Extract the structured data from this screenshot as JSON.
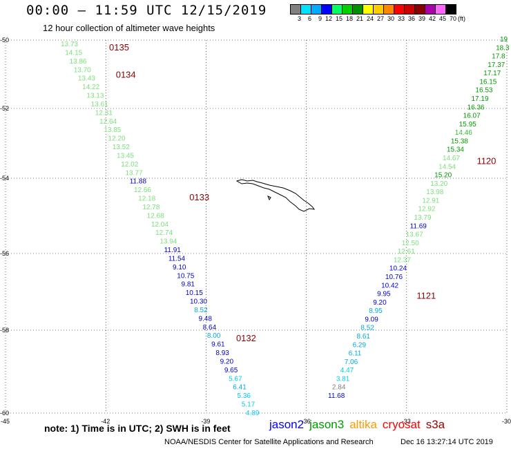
{
  "title": "00:00 – 11:59 UTC 12/15/2019",
  "subtitle": "12 hour collection of altimeter wave heights",
  "colorbar": {
    "labels": [
      "3",
      "6",
      "9",
      "12",
      "15",
      "18",
      "21",
      "24",
      "27",
      "30",
      "33",
      "36",
      "39",
      "42",
      "45",
      "70"
    ],
    "unit": "(ft)",
    "colors": [
      "#808080",
      "#00e0ff",
      "#00aaff",
      "#0000ff",
      "#00ff60",
      "#00d000",
      "#009000",
      "#ffff00",
      "#ffcc00",
      "#ff8800",
      "#ff0000",
      "#cc0000",
      "#880000",
      "#aa00aa",
      "#ff66ff",
      "#000000"
    ]
  },
  "axes": {
    "lat_labels": [
      "-50",
      "-52",
      "-54",
      "-56",
      "-58",
      "-60"
    ],
    "lon_labels": [
      "-45",
      "-42",
      "-39",
      "-36",
      "-33",
      "-30"
    ]
  },
  "passes": [
    {
      "label": "0135",
      "lon": -41.9,
      "lat": -50.1
    },
    {
      "label": "0134",
      "lon": -41.7,
      "lat": -50.9
    },
    {
      "label": "0133",
      "lon": -39.5,
      "lat": -54.4
    },
    {
      "label": "0132",
      "lon": -38.1,
      "lat": -58.1
    },
    {
      "label": "1120",
      "lon": -30.9,
      "lat": -53.4
    },
    {
      "label": "1121",
      "lon": -32.7,
      "lat": -57.0
    }
  ],
  "track_west": [
    {
      "v": "13.73",
      "c": "#7be07b"
    },
    {
      "v": "14.15",
      "c": "#7be07b"
    },
    {
      "v": "13.86",
      "c": "#7be07b"
    },
    {
      "v": "13.70",
      "c": "#7be07b"
    },
    {
      "v": "13.43",
      "c": "#7be07b"
    },
    {
      "v": "14.22",
      "c": "#7be07b"
    },
    {
      "v": "13.13",
      "c": "#7be07b"
    },
    {
      "v": "13.61",
      "c": "#7be07b"
    },
    {
      "v": "12.31",
      "c": "#7be07b"
    },
    {
      "v": "12.64",
      "c": "#7be07b"
    },
    {
      "v": "13.85",
      "c": "#7be07b"
    },
    {
      "v": "12.20",
      "c": "#7be07b"
    },
    {
      "v": "13.52",
      "c": "#7be07b"
    },
    {
      "v": "13.45",
      "c": "#7be07b"
    },
    {
      "v": "12.02",
      "c": "#7be07b"
    },
    {
      "v": "13.77",
      "c": "#7be07b"
    },
    {
      "v": "11.88",
      "c": "#0000cc"
    },
    {
      "v": "12.66",
      "c": "#7be07b"
    },
    {
      "v": "12.18",
      "c": "#7be07b"
    },
    {
      "v": "12.78",
      "c": "#7be07b"
    },
    {
      "v": "12.68",
      "c": "#7be07b"
    },
    {
      "v": "12.04",
      "c": "#7be07b"
    },
    {
      "v": "12.74",
      "c": "#7be07b"
    },
    {
      "v": "13.94",
      "c": "#7be07b"
    },
    {
      "v": "11.91",
      "c": "#0000cc"
    },
    {
      "v": "11.54",
      "c": "#0000cc"
    },
    {
      "v": "9.10",
      "c": "#0000cc"
    },
    {
      "v": "10.75",
      "c": "#0000cc"
    },
    {
      "v": "9.81",
      "c": "#0000cc"
    },
    {
      "v": "10.15",
      "c": "#0000cc"
    },
    {
      "v": "10.30",
      "c": "#0000cc"
    },
    {
      "v": "8.52",
      "c": "#00aadd"
    },
    {
      "v": "9.48",
      "c": "#0000cc"
    },
    {
      "v": "8.64",
      "c": "#0000cc"
    },
    {
      "v": "8.00",
      "c": "#00aadd"
    },
    {
      "v": "9.61",
      "c": "#0000cc"
    },
    {
      "v": "8.93",
      "c": "#0000cc"
    },
    {
      "v": "9.20",
      "c": "#0000cc"
    },
    {
      "v": "9.65",
      "c": "#0000cc"
    },
    {
      "v": "5.67",
      "c": "#00ccee"
    },
    {
      "v": "6.41",
      "c": "#00aadd"
    },
    {
      "v": "5.36",
      "c": "#00ccee"
    },
    {
      "v": "5.17",
      "c": "#00ccee"
    },
    {
      "v": "4.89",
      "c": "#00ccee"
    }
  ],
  "track_east": [
    {
      "v": "19",
      "c": "#009900"
    },
    {
      "v": "18.3",
      "c": "#009900"
    },
    {
      "v": "17.8",
      "c": "#009900"
    },
    {
      "v": "17.37",
      "c": "#009900"
    },
    {
      "v": "17.17",
      "c": "#009900"
    },
    {
      "v": "16.15",
      "c": "#009900"
    },
    {
      "v": "16.53",
      "c": "#009900"
    },
    {
      "v": "17.19",
      "c": "#009900"
    },
    {
      "v": "16.36",
      "c": "#009900"
    },
    {
      "v": "16.07",
      "c": "#009900"
    },
    {
      "v": "15.95",
      "c": "#009900"
    },
    {
      "v": "14.46",
      "c": "#33bb33"
    },
    {
      "v": "15.38",
      "c": "#009900"
    },
    {
      "v": "15.34",
      "c": "#009900"
    },
    {
      "v": "14.67",
      "c": "#7be07b"
    },
    {
      "v": "14.54",
      "c": "#7be07b"
    },
    {
      "v": "15.20",
      "c": "#009900"
    },
    {
      "v": "13.20",
      "c": "#7be07b"
    },
    {
      "v": "13.98",
      "c": "#7be07b"
    },
    {
      "v": "12.91",
      "c": "#7be07b"
    },
    {
      "v": "12.92",
      "c": "#7be07b"
    },
    {
      "v": "13.79",
      "c": "#7be07b"
    },
    {
      "v": "11.69",
      "c": "#0000cc"
    },
    {
      "v": "13.67",
      "c": "#7be07b"
    },
    {
      "v": "12.50",
      "c": "#7be07b"
    },
    {
      "v": "12.61",
      "c": "#7be07b"
    },
    {
      "v": "12.37",
      "c": "#7be07b"
    },
    {
      "v": "10.24",
      "c": "#0000cc"
    },
    {
      "v": "10.76",
      "c": "#0000cc"
    },
    {
      "v": "10.42",
      "c": "#0000cc"
    },
    {
      "v": "9.95",
      "c": "#0000cc"
    },
    {
      "v": "9.20",
      "c": "#0000cc"
    },
    {
      "v": "8.95",
      "c": "#00aadd"
    },
    {
      "v": "9.09",
      "c": "#0000cc"
    },
    {
      "v": "8.52",
      "c": "#00aadd"
    },
    {
      "v": "8.61",
      "c": "#00aadd"
    },
    {
      "v": "6.29",
      "c": "#00aadd"
    },
    {
      "v": "6.11",
      "c": "#00aadd"
    },
    {
      "v": "7.06",
      "c": "#00aadd"
    },
    {
      "v": "4.47",
      "c": "#00ccee"
    },
    {
      "v": "3.81",
      "c": "#00ccee"
    },
    {
      "v": "2.84",
      "c": "#808080"
    },
    {
      "v": "11.68",
      "c": "#0000cc"
    }
  ],
  "footer": {
    "note": "note:  1) Time is in UTC;  2) SWH is in feet",
    "legend": [
      {
        "name": "jason2",
        "color": "#0000ff"
      },
      {
        "name": "jason3",
        "color": "#009900"
      },
      {
        "name": "altika",
        "color": "#ff9900"
      },
      {
        "name": "cryosat",
        "color": "#ff0000"
      },
      {
        "name": "s3a",
        "color": "#990000"
      }
    ],
    "credit": "NOAA/NESDIS Center for Satellite Applications and Research",
    "timestamp": "Dec 16 13:27:14 UTC 2019"
  }
}
